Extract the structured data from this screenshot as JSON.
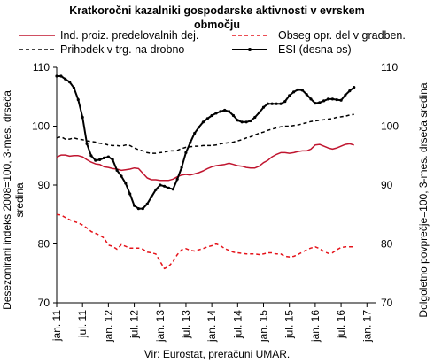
{
  "chart_data": {
    "type": "line",
    "title_lines": [
      "Kratkoročni kazalniki gospodarske aktivnosti v evrskem",
      "območju"
    ],
    "ylabel_left_lines": [
      "Desezonirani indeks 2008=100, 3-mes. drseča",
      "sredina"
    ],
    "ylabel_right": "Dolgoletno povprečje=100, 3-mes. drseča sredina",
    "source": "Vir: Eurostat, preračuni UMAR.",
    "ylim_left": [
      70,
      110
    ],
    "ylim_right": [
      70,
      110
    ],
    "yticks_left": [
      "70",
      "80",
      "90",
      "100",
      "110"
    ],
    "yticks_right": [
      "70",
      "80",
      "90",
      "100",
      "110"
    ],
    "x_start": "jan. 11",
    "x_months": 74,
    "xticks": [
      {
        "label": "jan. 11",
        "month": 0
      },
      {
        "label": "jul. 11",
        "month": 6
      },
      {
        "label": "jan. 12",
        "month": 12
      },
      {
        "label": "jul. 12",
        "month": 18
      },
      {
        "label": "jan. 13",
        "month": 24
      },
      {
        "label": "jul. 13",
        "month": 30
      },
      {
        "label": "jan. 14",
        "month": 36
      },
      {
        "label": "jul. 14",
        "month": 42
      },
      {
        "label": "jan. 15",
        "month": 48
      },
      {
        "label": "jul. 15",
        "month": 54
      },
      {
        "label": "jan. 16",
        "month": 60
      },
      {
        "label": "jul. 16",
        "month": 66
      },
      {
        "label": "jan. 17",
        "month": 72
      }
    ],
    "legend": [
      {
        "label": "Ind. proiz. predelovalnih dej.",
        "series": 0
      },
      {
        "label": "Obseg opr. del v gradben.",
        "series": 1
      },
      {
        "label": "Prihodek v trg. na drobno",
        "series": 2
      },
      {
        "label": "ESI (desna os)",
        "series": 3
      }
    ],
    "series": [
      {
        "name": "Ind. proiz. predelovalnih dej.",
        "axis": "left",
        "color": "#c0152f",
        "style": "solid",
        "values": [
          94.7,
          95.1,
          95.1,
          94.9,
          95.0,
          95.0,
          94.8,
          94.3,
          93.9,
          93.6,
          93.5,
          93.1,
          93.0,
          92.8,
          92.7,
          92.5,
          92.6,
          92.7,
          92.9,
          92.8,
          92.0,
          91.2,
          90.9,
          90.9,
          90.8,
          90.8,
          90.8,
          91.0,
          91.4,
          91.7,
          91.8,
          91.7,
          91.9,
          92.1,
          92.4,
          92.8,
          93.1,
          93.3,
          93.4,
          93.5,
          93.7,
          93.5,
          93.3,
          93.2,
          93.0,
          92.9,
          92.9,
          93.2,
          93.8,
          94.2,
          94.8,
          95.2,
          95.5,
          95.5,
          95.4,
          95.5,
          95.7,
          95.8,
          95.8,
          96.1,
          96.8,
          96.9,
          96.6,
          96.3,
          96.1,
          96.3,
          96.6,
          96.9,
          97.0,
          96.8
        ]
      },
      {
        "name": "Obseg opr. del v gradben.",
        "axis": "left",
        "color": "#e5141b",
        "style": "dashed",
        "values": [
          85.0,
          84.9,
          84.5,
          84.1,
          83.8,
          83.6,
          83.2,
          82.7,
          82.1,
          81.8,
          81.5,
          81.0,
          79.8,
          79.6,
          79.1,
          79.9,
          79.6,
          79.3,
          79.3,
          79.3,
          79.1,
          78.6,
          78.5,
          78.3,
          77.0,
          75.8,
          76.2,
          77.0,
          78.2,
          79.0,
          79.2,
          78.9,
          78.8,
          79.0,
          79.2,
          79.5,
          79.7,
          80.0,
          79.7,
          79.2,
          78.9,
          78.6,
          78.5,
          78.4,
          78.3,
          78.3,
          78.3,
          78.2,
          78.3,
          78.5,
          78.5,
          78.3,
          78.3,
          77.9,
          77.8,
          77.9,
          78.2,
          78.6,
          79.0,
          79.3,
          79.5,
          79.2,
          78.7,
          78.4,
          78.5,
          79.0,
          79.4,
          79.5,
          79.5,
          79.5
        ]
      },
      {
        "name": "Prihodek v trg. na drobno",
        "axis": "left",
        "color": "#000000",
        "style": "dashed",
        "values": [
          98.0,
          98.2,
          97.8,
          97.8,
          98.0,
          97.8,
          97.7,
          97.5,
          97.4,
          97.3,
          97.1,
          97.0,
          96.8,
          96.7,
          96.7,
          96.6,
          96.8,
          96.7,
          96.3,
          96.0,
          95.8,
          95.5,
          95.4,
          95.4,
          95.5,
          95.6,
          95.8,
          95.8,
          95.9,
          96.2,
          96.4,
          96.5,
          96.6,
          96.6,
          96.7,
          96.7,
          96.7,
          96.8,
          97.0,
          97.1,
          97.2,
          97.3,
          97.5,
          97.7,
          98.0,
          98.2,
          98.5,
          98.8,
          99.0,
          99.3,
          99.5,
          99.7,
          99.9,
          100.0,
          100.0,
          100.1,
          100.2,
          100.4,
          100.6,
          100.8,
          100.9,
          101.0,
          101.1,
          101.2,
          101.3,
          101.5,
          101.6,
          101.7,
          101.9,
          102.0
        ]
      },
      {
        "name": "ESI (desna os)",
        "axis": "right",
        "color": "#000000",
        "style": "solid-markers",
        "values": [
          108.5,
          108.5,
          108.0,
          107.5,
          106.5,
          104.5,
          101.5,
          97.0,
          95.0,
          94.2,
          94.3,
          94.6,
          94.8,
          94.3,
          92.5,
          91.5,
          90.3,
          88.5,
          86.5,
          86.0,
          86.0,
          86.8,
          88.0,
          89.2,
          90.0,
          89.8,
          89.5,
          89.3,
          91.0,
          93.0,
          95.5,
          97.2,
          98.8,
          99.8,
          100.7,
          101.3,
          101.8,
          102.2,
          102.5,
          102.7,
          102.5,
          101.8,
          101.0,
          100.7,
          100.7,
          100.9,
          101.5,
          102.3,
          103.2,
          103.8,
          103.8,
          103.8,
          103.8,
          104.2,
          105.2,
          105.8,
          106.2,
          106.1,
          105.4,
          104.6,
          103.9,
          104.0,
          104.3,
          104.6,
          104.6,
          104.5,
          104.4,
          105.3,
          106.0,
          106.6
        ]
      }
    ]
  }
}
